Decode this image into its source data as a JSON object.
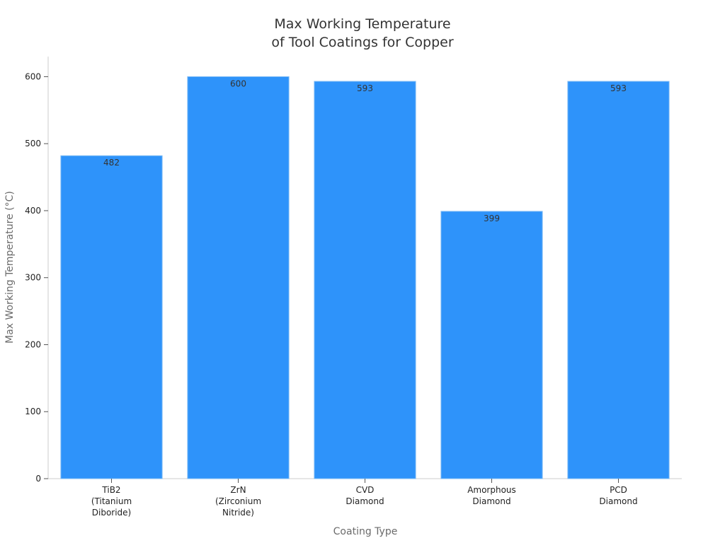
{
  "chart_data": {
    "type": "bar",
    "title": [
      "Max Working Temperature",
      "of Tool Coatings for Copper"
    ],
    "xlabel": "Coating Type",
    "ylabel": "Max Working Temperature (°C)",
    "categories": [
      [
        "TiB2",
        "(Titanium",
        "Diboride)"
      ],
      [
        "ZrN",
        "(Zirconium",
        "Nitride)"
      ],
      [
        "CVD",
        "Diamond"
      ],
      [
        "Amorphous",
        "Diamond"
      ],
      [
        "PCD",
        "Diamond"
      ]
    ],
    "values": [
      482,
      600,
      593,
      399,
      593
    ],
    "data_labels": [
      "482",
      "600",
      "593",
      "399",
      "593"
    ],
    "ylim": [
      0,
      630
    ],
    "yticks": [
      0,
      100,
      200,
      300,
      400,
      500,
      600
    ],
    "grid": false,
    "legend": "none",
    "bar_color": "#2e93fa"
  }
}
